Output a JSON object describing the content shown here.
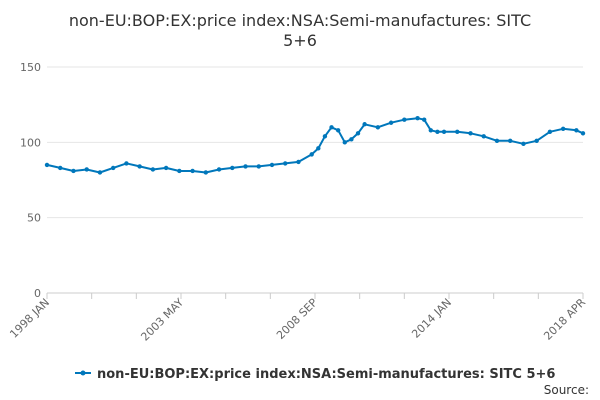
{
  "chart_data": {
    "type": "line",
    "title_lines": [
      "non-EU:BOP:EX:price index:NSA:Semi-manufactures: SITC",
      "5+6"
    ],
    "x_tick_labels": [
      "1998 JAN",
      "2003 MAY",
      "2008 SEP",
      "2014 JAN",
      "2018 APR"
    ],
    "y_tick_labels": [
      "0",
      "50",
      "100",
      "150"
    ],
    "ylim": [
      0,
      150
    ],
    "series": [
      {
        "name": "non-EU:BOP:EX:price index:NSA:Semi-manufactures: SITC 5+6",
        "color": "#0077bb",
        "x": [
          1998.0,
          1998.5,
          1999.0,
          1999.5,
          2000.0,
          2000.5,
          2001.0,
          2001.5,
          2002.0,
          2002.5,
          2003.0,
          2003.5,
          2004.0,
          2004.5,
          2005.0,
          2005.5,
          2006.0,
          2006.5,
          2007.0,
          2007.5,
          2008.0,
          2008.25,
          2008.5,
          2008.75,
          2009.0,
          2009.25,
          2009.5,
          2009.75,
          2010.0,
          2010.5,
          2011.0,
          2011.5,
          2012.0,
          2012.25,
          2012.5,
          2012.75,
          2013.0,
          2013.5,
          2014.0,
          2014.5,
          2015.0,
          2015.5,
          2016.0,
          2016.5,
          2017.0,
          2017.5,
          2018.0,
          2018.25
        ],
        "values": [
          85,
          83,
          81,
          82,
          80,
          83,
          86,
          84,
          82,
          83,
          81,
          81,
          80,
          82,
          83,
          84,
          84,
          85,
          86,
          87,
          92,
          96,
          104,
          110,
          108,
          100,
          102,
          106,
          112,
          110,
          113,
          115,
          116,
          115,
          108,
          107,
          107,
          107,
          106,
          104,
          101,
          101,
          99,
          101,
          107,
          109,
          108,
          106
        ]
      }
    ]
  },
  "legend_label": "non-EU:BOP:EX:price index:NSA:Semi-manufactures: SITC 5+6",
  "source_label": "Source:"
}
